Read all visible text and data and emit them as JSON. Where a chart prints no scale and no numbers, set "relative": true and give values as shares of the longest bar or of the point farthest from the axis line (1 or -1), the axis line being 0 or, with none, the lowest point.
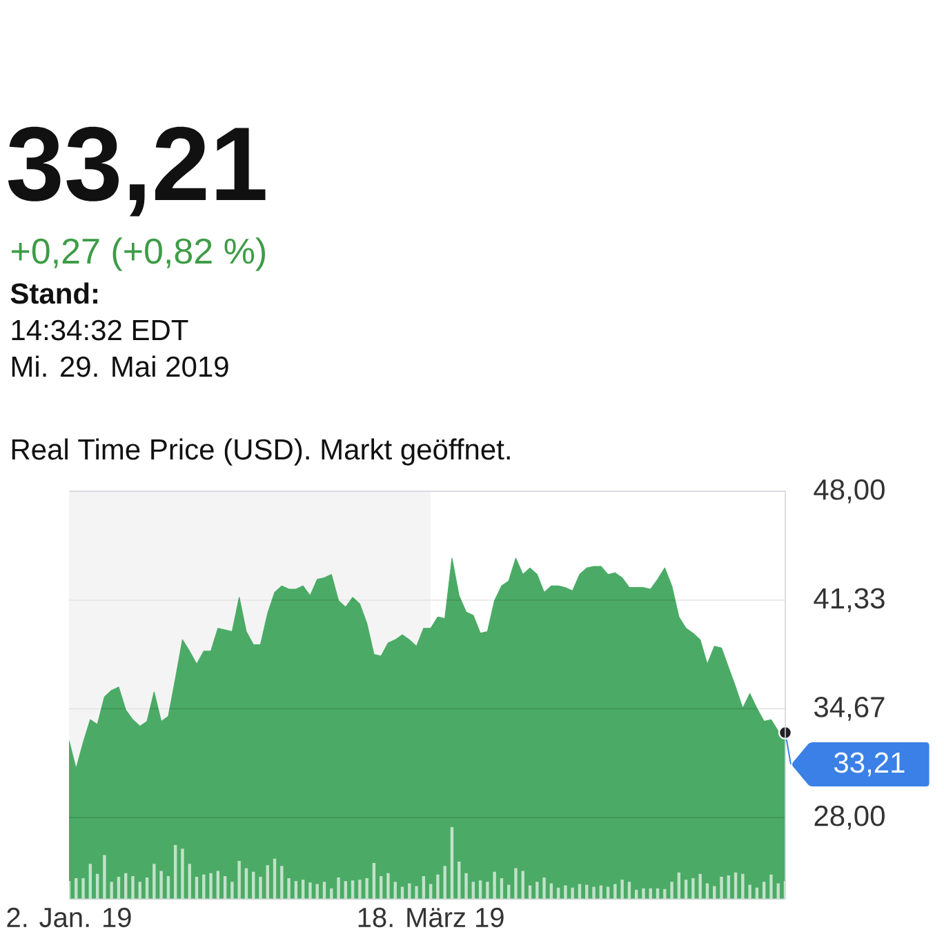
{
  "chart_data": [
    {
      "type": "area",
      "title": "33,21",
      "subtitle": "+0,27 (+0,82 %)",
      "annotations": [
        "Stand:",
        "14:34:32 EDT",
        "Mi. 29. Mai 2019",
        "Real Time Price (USD). Markt geöffnet.",
        "33,21"
      ],
      "categories": [
        "2. Jan. 19",
        null,
        null,
        null,
        null,
        null,
        null,
        null,
        null,
        null,
        null,
        null,
        null,
        null,
        null,
        null,
        null,
        null,
        null,
        null,
        null,
        null,
        null,
        null,
        null,
        null,
        null,
        null,
        null,
        null,
        null,
        null,
        null,
        null,
        null,
        null,
        null,
        null,
        null,
        null,
        null,
        null,
        null,
        null,
        null,
        null,
        null,
        null,
        null,
        null,
        null,
        "18. März 19",
        null,
        null,
        null,
        null,
        null,
        null,
        null,
        null,
        null,
        null,
        null,
        null,
        null,
        null,
        null,
        null,
        null,
        null,
        null,
        null,
        null,
        null,
        null,
        null,
        null,
        null,
        null,
        null,
        null,
        null,
        null,
        null,
        null,
        null,
        null,
        null,
        null,
        null,
        null,
        null,
        null,
        null,
        null,
        null,
        null,
        null,
        null,
        null,
        null,
        null
      ],
      "values": [
        32.7,
        31.0,
        32.6,
        34.0,
        33.7,
        35.4,
        35.8,
        36.0,
        34.6,
        34.0,
        33.6,
        33.9,
        35.7,
        33.9,
        34.2,
        36.5,
        38.9,
        38.2,
        37.4,
        38.2,
        38.2,
        39.6,
        39.5,
        39.4,
        41.5,
        39.4,
        38.6,
        38.6,
        40.5,
        41.8,
        42.2,
        42.0,
        42.0,
        42.2,
        41.6,
        42.6,
        42.7,
        42.9,
        41.3,
        40.9,
        41.5,
        41.1,
        39.9,
        38.0,
        37.9,
        38.7,
        38.9,
        39.2,
        38.9,
        38.5,
        39.6,
        39.6,
        40.3,
        40.2,
        43.9,
        41.6,
        40.6,
        40.4,
        39.3,
        39.4,
        41.3,
        42.2,
        42.5,
        43.9,
        42.9,
        43.3,
        42.9,
        41.8,
        42.2,
        42.2,
        42.1,
        41.9,
        42.9,
        43.3,
        43.4,
        43.4,
        42.9,
        43.0,
        42.7,
        42.1,
        42.1,
        42.1,
        42.0,
        42.6,
        43.3,
        42.2,
        40.3,
        39.6,
        39.3,
        38.9,
        37.4,
        38.5,
        38.4,
        37.2,
        36.0,
        34.7,
        35.6,
        34.7,
        33.9,
        34.0,
        33.3,
        33.21
      ],
      "color": "#4bab66",
      "ylim": [
        23,
        48
      ],
      "yticks": [
        {
          "value": 28,
          "label": "28,00"
        },
        {
          "value": 34.67,
          "label": "34,67"
        },
        {
          "value": 41.33,
          "label": "41,33"
        },
        {
          "value": 48,
          "label": "48,00"
        }
      ],
      "grid": "y",
      "bands": [
        {
          "axis": "x",
          "from": "2. Jan. 19",
          "to": "18. März 19",
          "color": "#f4f4f4"
        }
      ]
    },
    {
      "type": "bar",
      "relative": true,
      "color": "#c2e2c9",
      "categories": [
        null,
        null,
        null,
        null,
        null,
        null,
        null,
        null,
        null,
        null,
        null,
        null,
        null,
        null,
        null,
        null,
        null,
        null,
        null,
        null,
        null,
        null,
        null,
        null,
        null,
        null,
        null,
        null,
        null,
        null,
        null,
        null,
        null,
        null,
        null,
        null,
        null,
        null,
        null,
        null,
        null,
        null,
        null,
        null,
        null,
        null,
        null,
        null,
        null,
        null,
        null,
        null,
        null,
        null,
        null,
        null,
        null,
        null,
        null,
        null,
        null,
        null,
        null,
        null,
        null,
        null,
        null,
        null,
        null,
        null,
        null,
        null,
        null,
        null,
        null,
        null,
        null,
        null,
        null,
        null,
        null,
        null,
        null,
        null,
        null,
        null,
        null,
        null,
        null,
        null,
        null,
        null,
        null,
        null,
        null,
        null,
        null,
        null,
        null,
        null,
        null,
        null
      ],
      "values": [
        0.25,
        0.29,
        0.29,
        0.49,
        0.35,
        0.61,
        0.24,
        0.31,
        0.36,
        0.32,
        0.24,
        0.3,
        0.49,
        0.39,
        0.32,
        0.75,
        0.7,
        0.49,
        0.31,
        0.34,
        0.36,
        0.39,
        0.32,
        0.24,
        0.53,
        0.43,
        0.38,
        0.31,
        0.47,
        0.56,
        0.46,
        0.29,
        0.25,
        0.27,
        0.23,
        0.21,
        0.24,
        0.15,
        0.3,
        0.25,
        0.26,
        0.27,
        0.29,
        0.5,
        0.32,
        0.36,
        0.24,
        0.17,
        0.22,
        0.18,
        0.32,
        0.21,
        0.34,
        0.46,
        1,
        0.52,
        0.36,
        0.24,
        0.26,
        0.24,
        0.38,
        0.29,
        0.2,
        0.43,
        0.39,
        0.19,
        0.24,
        0.3,
        0.22,
        0.16,
        0.19,
        0.16,
        0.21,
        0.2,
        0.17,
        0.19,
        0.17,
        0.21,
        0.27,
        0.24,
        0.13,
        0.15,
        0.15,
        0.15,
        0.14,
        0.24,
        0.37,
        0.27,
        0.29,
        0.35,
        0.22,
        0.18,
        0.31,
        0.33,
        0.37,
        0.35,
        0.2,
        0.16,
        0.24,
        0.34,
        0.22,
        0.25
      ]
    }
  ]
}
